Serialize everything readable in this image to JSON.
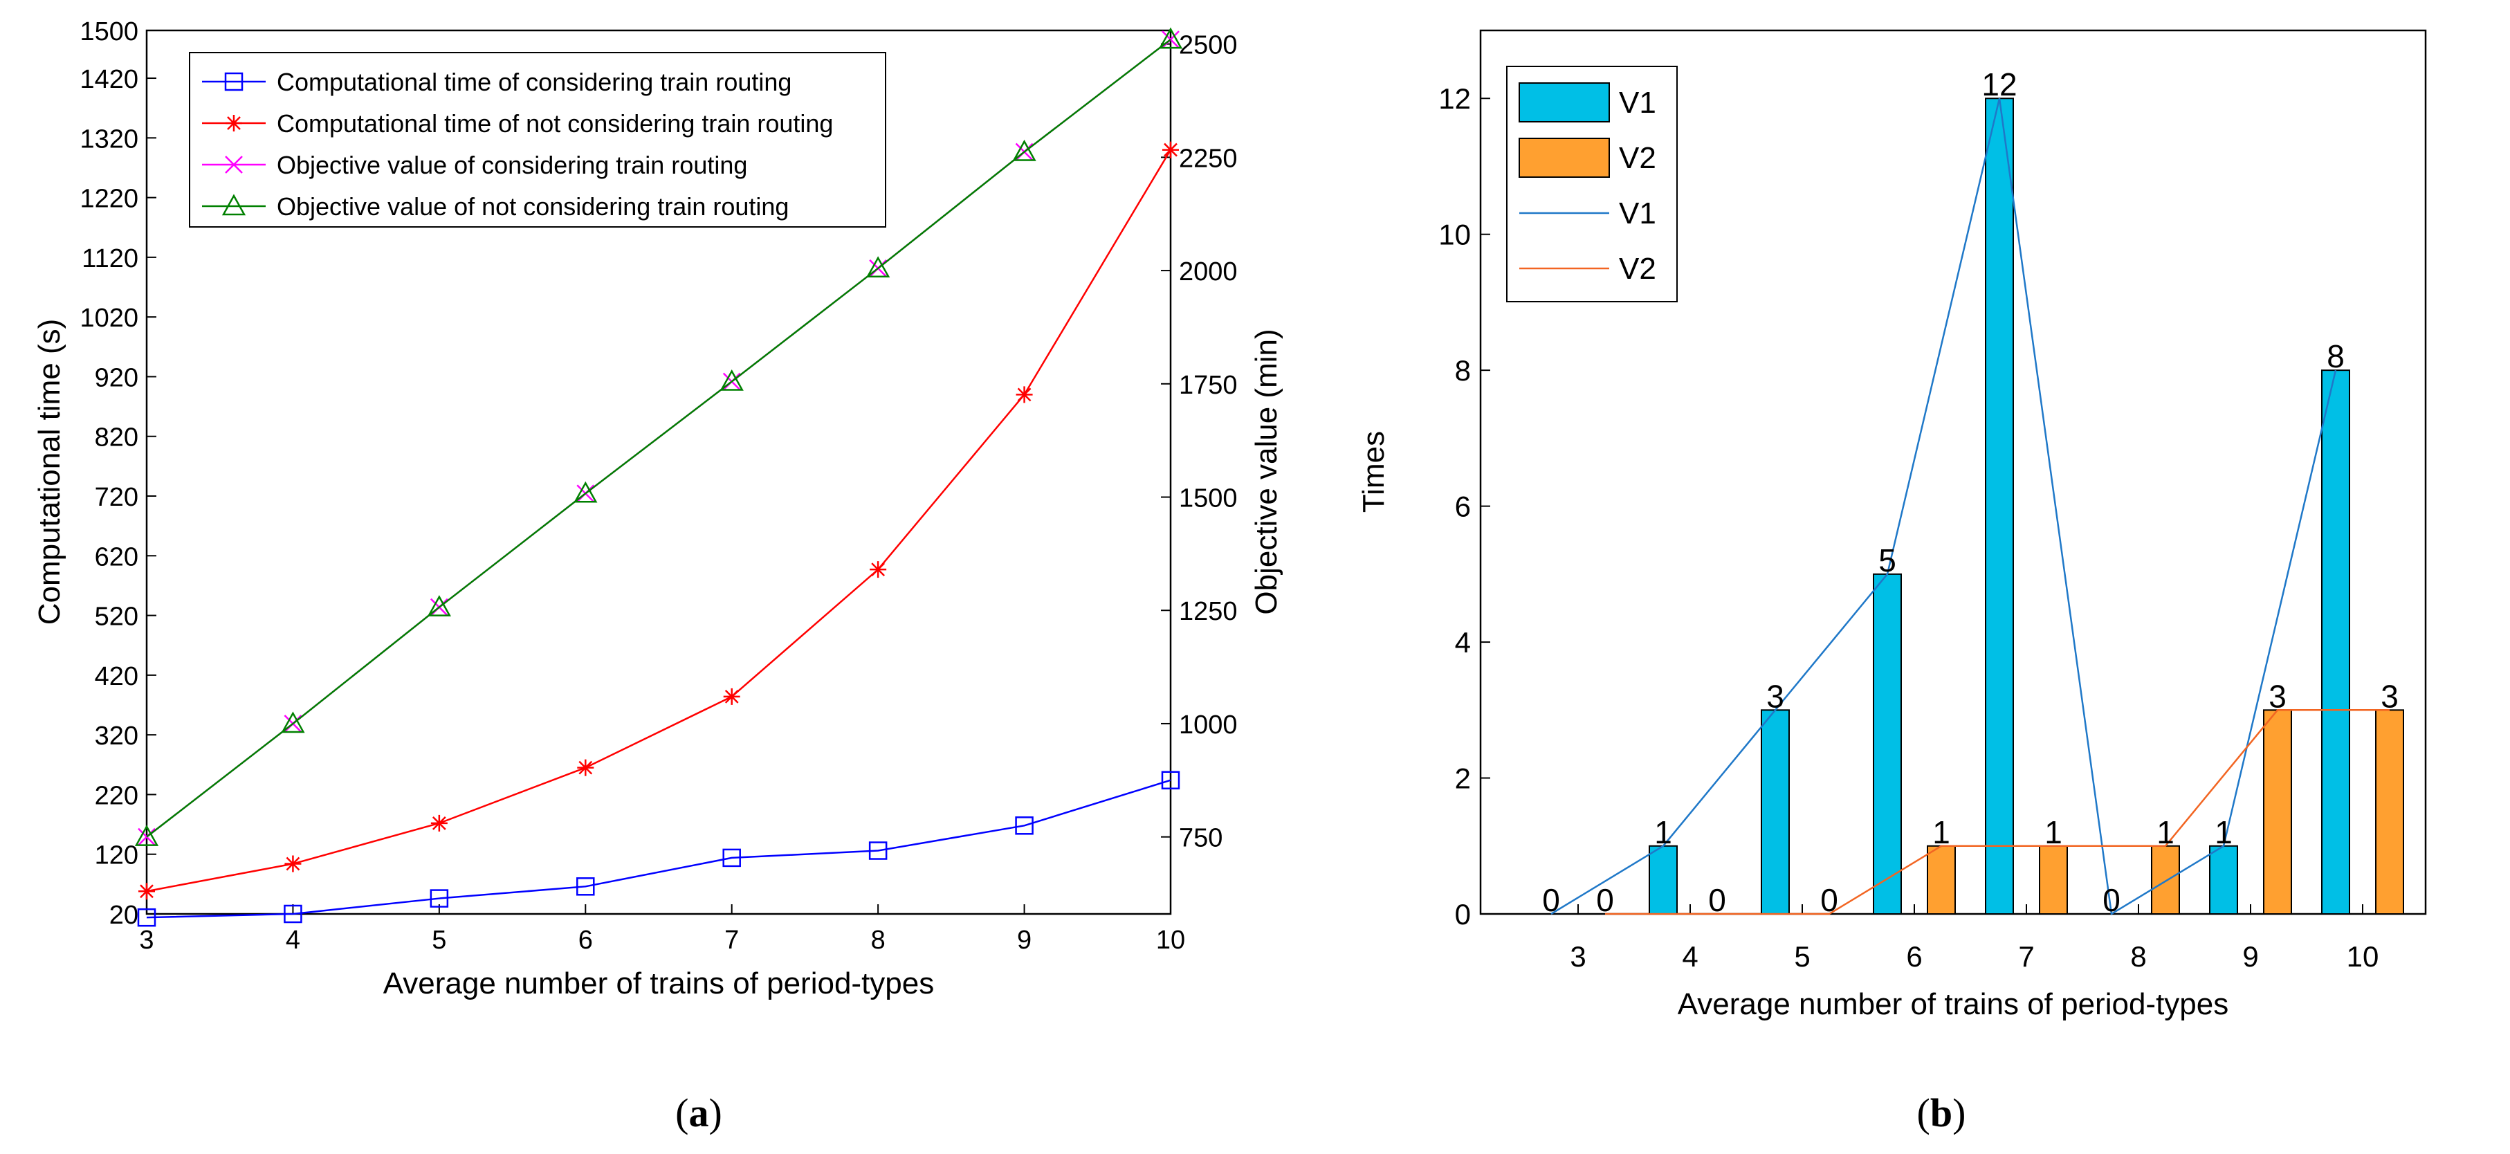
{
  "panels": [
    {
      "label_open": "(",
      "label_letter": "a",
      "label_close": ")"
    },
    {
      "label_open": "(",
      "label_letter": "b",
      "label_close": ")"
    }
  ],
  "chart_data": [
    {
      "type": "line",
      "xlabel": "Average number of trains of period-types",
      "ylabel": "Computational time (s)",
      "y2label": "Objective value (min)",
      "x": [
        3,
        4,
        5,
        6,
        7,
        8,
        9,
        10
      ],
      "xlim": [
        3,
        10
      ],
      "ylim": [
        20,
        1500
      ],
      "y2lim": [
        580,
        2530
      ],
      "yticks": [
        20,
        120,
        220,
        320,
        420,
        520,
        620,
        720,
        820,
        920,
        1020,
        1120,
        1220,
        1320,
        1420,
        1500
      ],
      "y2ticks": [
        750,
        1000,
        1250,
        1500,
        1750,
        2000,
        2250,
        2500
      ],
      "grid": false,
      "legend_position": "top-left",
      "series": [
        {
          "name": "Computational time of considering train routing",
          "axis": "left",
          "color": "#0000ff",
          "marker": "square",
          "values": [
            14,
            20,
            46,
            66,
            114,
            126,
            168,
            244
          ]
        },
        {
          "name": "Computational time of not considering train routing",
          "axis": "left",
          "color": "#ff0000",
          "marker": "star",
          "values": [
            58,
            104,
            172,
            265,
            384,
            597,
            890,
            1300
          ]
        },
        {
          "name": "Objective value of considering train routing",
          "axis": "right",
          "color": "#ff00ff",
          "marker": "x",
          "values": [
            750,
            1000,
            1257,
            1508,
            1755,
            2005,
            2262,
            2510
          ]
        },
        {
          "name": "Objective value of not considering train routing",
          "axis": "right",
          "color": "#008000",
          "marker": "triangle",
          "values": [
            750,
            1000,
            1257,
            1508,
            1755,
            2005,
            2262,
            2510
          ]
        }
      ]
    },
    {
      "type": "bar",
      "xlabel": "Average number of trains of period-types",
      "ylabel": "Times",
      "categories": [
        "3",
        "4",
        "5",
        "6",
        "7",
        "8",
        "9",
        "10"
      ],
      "ylim": [
        0,
        13
      ],
      "yticks": [
        0,
        2,
        4,
        6,
        8,
        10,
        12
      ],
      "grid": false,
      "legend_position": "top-left",
      "legend": [
        {
          "name": "V1",
          "kind": "bar",
          "color": "#00bfe6"
        },
        {
          "name": "V2",
          "kind": "bar",
          "color": "#ffa030"
        },
        {
          "name": "V1",
          "kind": "line",
          "color": "#1f78c8"
        },
        {
          "name": "V2",
          "kind": "line",
          "color": "#f26522"
        }
      ],
      "series": [
        {
          "name": "V1",
          "color": "#00bfe6",
          "line_color": "#1f78c8",
          "values": [
            0,
            1,
            3,
            5,
            12,
            0,
            1,
            8
          ]
        },
        {
          "name": "V2",
          "color": "#ffa030",
          "line_color": "#f26522",
          "values": [
            0,
            0,
            0,
            1,
            1,
            1,
            3,
            3
          ]
        }
      ]
    }
  ]
}
